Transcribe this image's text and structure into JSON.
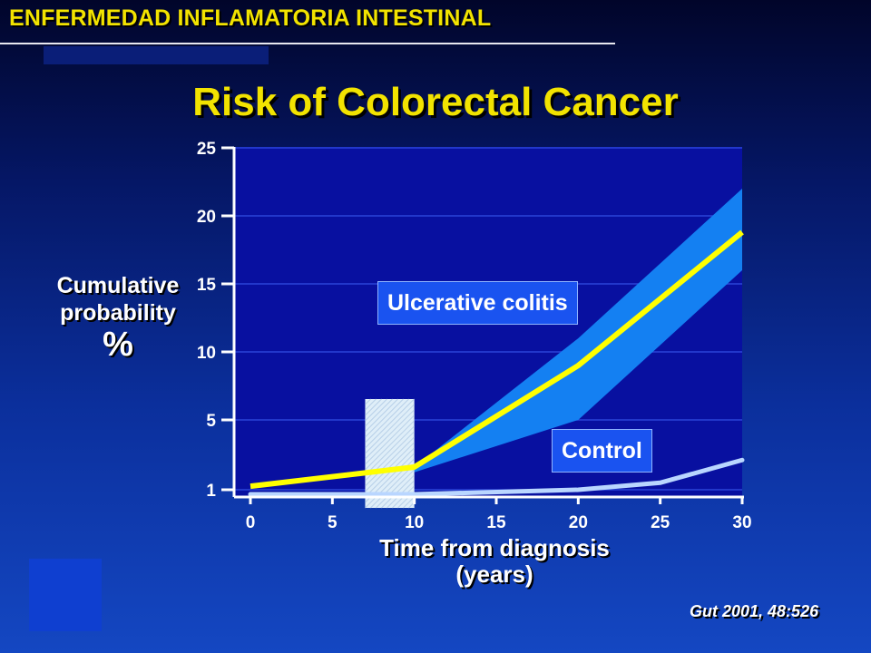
{
  "header": {
    "title": "ENFERMEDAD INFLAMATORIA INTESTINAL"
  },
  "chart_data": {
    "type": "line",
    "title": "Risk of Colorectal Cancer",
    "xlabel": "Time from diagnosis",
    "xlabel_sub": "(years)",
    "ylabel": "Cumulative probability",
    "ylabel_unit": "%",
    "xlim": [
      0,
      30
    ],
    "x_ticks": [
      0,
      5,
      10,
      15,
      20,
      25,
      30
    ],
    "y_ticks": [
      1,
      5,
      10,
      15,
      20,
      25
    ],
    "grid": "horizontal",
    "series": [
      {
        "name": "Ulcerative colitis",
        "x": [
          0,
          10,
          20,
          30
        ],
        "values": [
          1.2,
          2.3,
          9.0,
          18.8
        ],
        "ci_lower": [
          null,
          2.0,
          5.0,
          16.0
        ],
        "ci_upper": [
          null,
          2.3,
          11.0,
          22.0
        ],
        "color": "#ffff00",
        "band_color": "#1480f2"
      },
      {
        "name": "Control",
        "x": [
          0,
          10,
          20,
          25,
          30
        ],
        "values": [
          0.5,
          0.5,
          1.0,
          1.4,
          2.7
        ],
        "color": "#b9d6ff"
      }
    ],
    "annotations": [
      {
        "label": "Ulcerative colitis"
      },
      {
        "label": "Control"
      }
    ],
    "highlight_range_x": [
      7,
      10
    ]
  },
  "citation": "Gut 2001, 48:526",
  "colors": {
    "title": "#f2e300",
    "plot_bg": "#0810a0",
    "axis": "#ffffff"
  }
}
